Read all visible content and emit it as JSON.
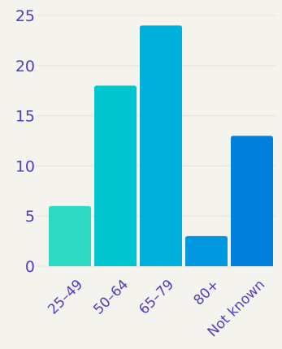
{
  "chart_data": {
    "type": "bar",
    "categories": [
      "25–49",
      "50–64",
      "65–79",
      "80+",
      "Not known"
    ],
    "values": [
      6,
      18,
      24,
      3,
      13
    ],
    "ylim": [
      0,
      25
    ],
    "yticks": [
      0,
      5,
      10,
      15,
      20,
      25
    ],
    "grid": true,
    "colors": [
      "#2ed8c3",
      "#00c6cf",
      "#00b0da",
      "#0097df",
      "#0080da"
    ],
    "text_color": "#4b3fc4"
  }
}
